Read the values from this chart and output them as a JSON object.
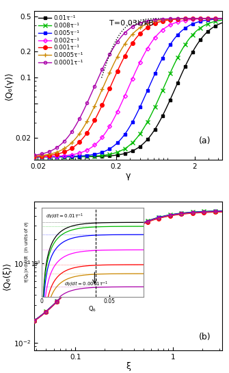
{
  "title_a": "T=0.03ε/kB",
  "xlabel_a": "γ",
  "ylabel_a": "⟨Q₆(γ)⟩",
  "xlabel_b": "ξ",
  "ylabel_b": "⟨Q₆(ξ)⟩",
  "label_a": "(a)",
  "label_b": "(b)",
  "rates": [
    0.01,
    0.008,
    0.005,
    0.002,
    0.001,
    0.0005,
    0.0001
  ],
  "rate_labels": [
    "0.01τ⁻¹",
    "0.008τ⁻¹",
    "0.005τ⁻¹",
    "0.002τ⁻¹",
    "0.001τ⁻¹",
    "0.0005τ⁻¹",
    "0.0001τ⁻¹"
  ],
  "colors": [
    "#000000",
    "#00bb00",
    "#0000ff",
    "#ff00ff",
    "#ff0000",
    "#cc8800",
    "#aa00aa"
  ],
  "markers": [
    "s",
    "x",
    "s",
    "D",
    "o",
    "+",
    "o"
  ],
  "marker_sizes": [
    3,
    4,
    3,
    3,
    4,
    5,
    3
  ],
  "marker_fill": [
    "full",
    "none",
    "full",
    "none",
    "full",
    "none",
    "none"
  ],
  "shift_map": {
    "0.01": 2.2,
    "0.008": 1.55,
    "0.005": 1.0,
    "0.002": 0.55,
    "0.001": 0.32,
    "0.0005": 0.26,
    "0.0001": 0.2
  },
  "plateau_map": {
    "0.01": 3.5,
    "0.008": 3.1,
    "0.005": 2.4,
    "0.002": 1.5,
    "0.001": 0.95,
    "0.0005": 0.72,
    "0.0001": 0.48
  },
  "xlim_a": [
    0.018,
    4.5
  ],
  "ylim_a": [
    0.011,
    0.58
  ],
  "xlim_b": [
    0.038,
    3.2
  ],
  "ylim_b": [
    0.008,
    0.6
  ],
  "yticks_a": [
    0.02,
    0.05,
    0.1,
    0.2,
    0.5
  ],
  "yticklabels_a": [
    "0.02",
    "",
    "0.1",
    "0.2",
    "0.5"
  ],
  "xticks_a": [
    0.02,
    0.2,
    2
  ],
  "xticklabels_a": [
    "0.02",
    "0.2",
    "2"
  ]
}
